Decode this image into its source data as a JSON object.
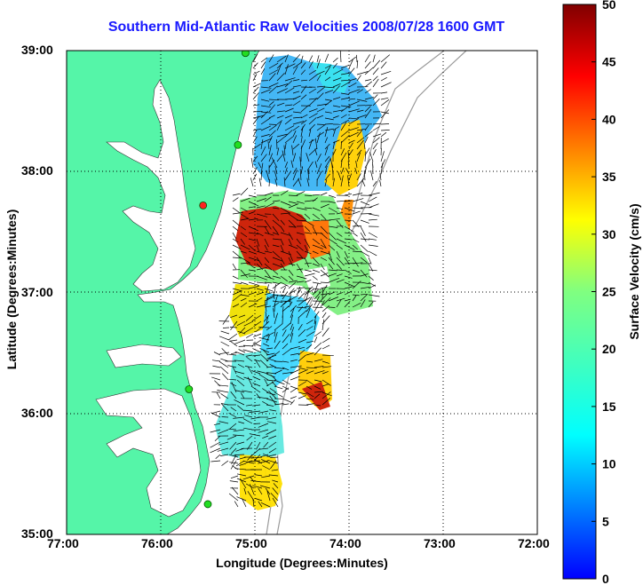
{
  "map": {
    "title": "Southern Mid-Atlantic Raw Velocities 2008/07/28 1600 GMT",
    "xlabel": "Longitude (Degrees:Minutes)",
    "ylabel": "Latitude (Degrees:Minutes)",
    "x_ticks": [
      "77:00",
      "76:00",
      "75:00",
      "74:00",
      "73:00",
      "72:00"
    ],
    "y_ticks": [
      "39:00",
      "38:00",
      "37:00",
      "36:00",
      "35:00"
    ],
    "extent": {
      "lon": [
        -77,
        -72
      ],
      "lat": [
        35,
        39
      ]
    },
    "colors": {
      "land": "#55f5a8",
      "water": "#ffffff",
      "title": "#1a1aff",
      "station_ok": "#22dd22",
      "station_off": "#ff2222"
    },
    "stations": [
      {
        "lon": -75.1,
        "lat": 38.98,
        "status": "ok"
      },
      {
        "lon": -75.18,
        "lat": 38.22,
        "status": "ok"
      },
      {
        "lon": -75.55,
        "lat": 37.72,
        "status": "off"
      },
      {
        "lon": -75.7,
        "lat": 36.2,
        "status": "ok"
      },
      {
        "lon": -75.5,
        "lat": 35.25,
        "status": "ok"
      }
    ]
  },
  "colorbar": {
    "label": "Surface Velocity (cm/s)",
    "range": [
      0,
      50
    ],
    "ticks": [
      "0",
      "5",
      "10",
      "15",
      "20",
      "25",
      "30",
      "35",
      "40",
      "45",
      "50"
    ],
    "colormap": "jet"
  }
}
